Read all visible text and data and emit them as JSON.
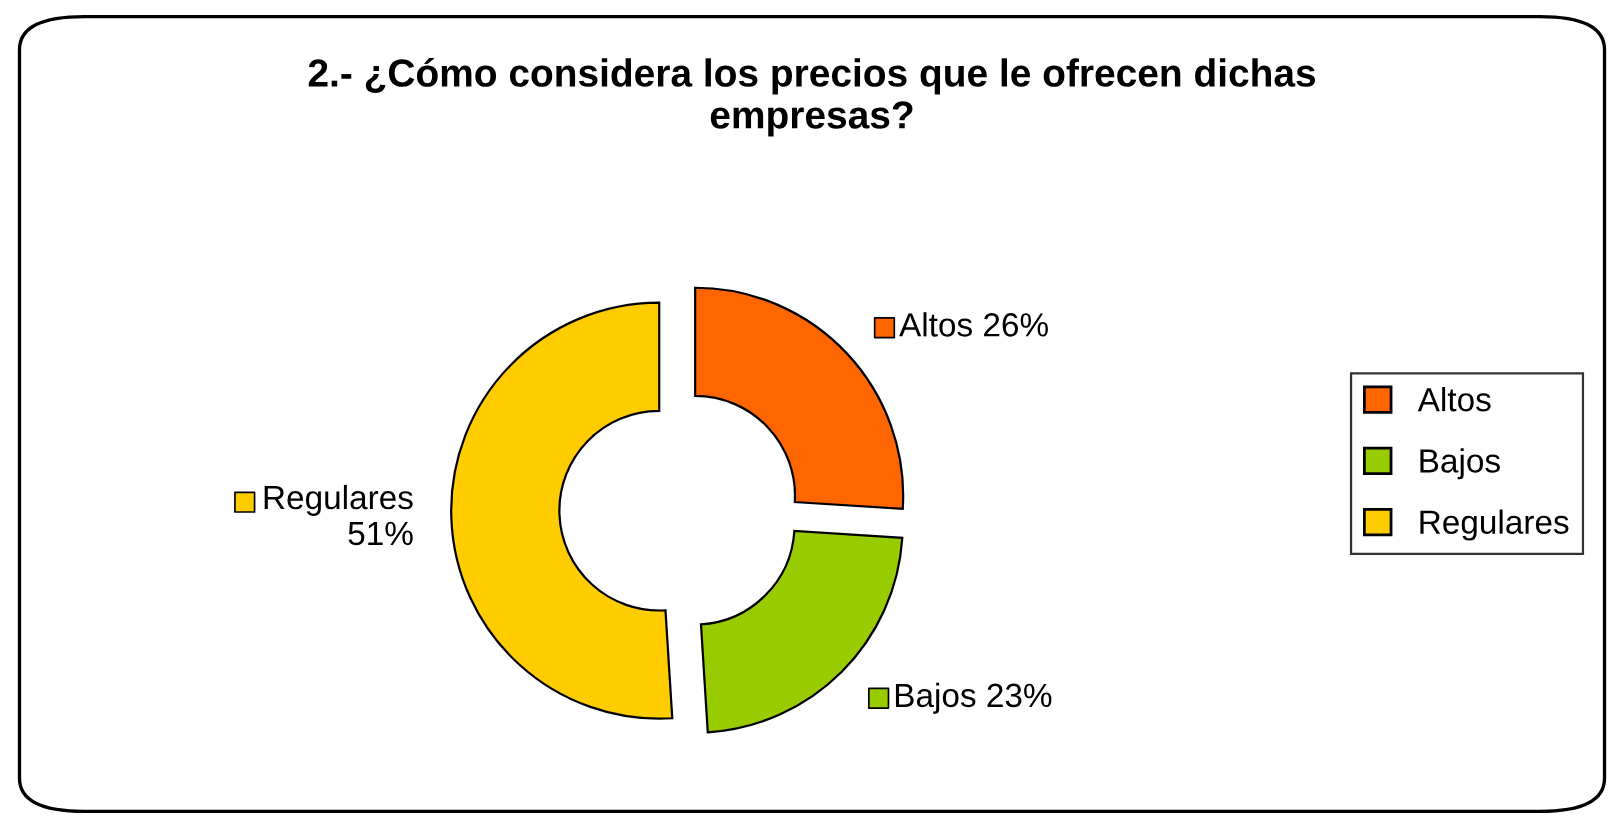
{
  "chart_data": {
    "type": "donut",
    "title": "2.- ¿Cómo considera los precios que le ofrecen dichas\nempresas?",
    "categories": [
      "Altos",
      "Bajos",
      "Regulares"
    ],
    "values": [
      26,
      23,
      51
    ],
    "colors": [
      "#ff6600",
      "#99cc00",
      "#ffcc00"
    ],
    "value_labels": [
      "Altos 26%",
      "Bajos 23%",
      "Regulares\n51%"
    ],
    "legend": "right"
  }
}
